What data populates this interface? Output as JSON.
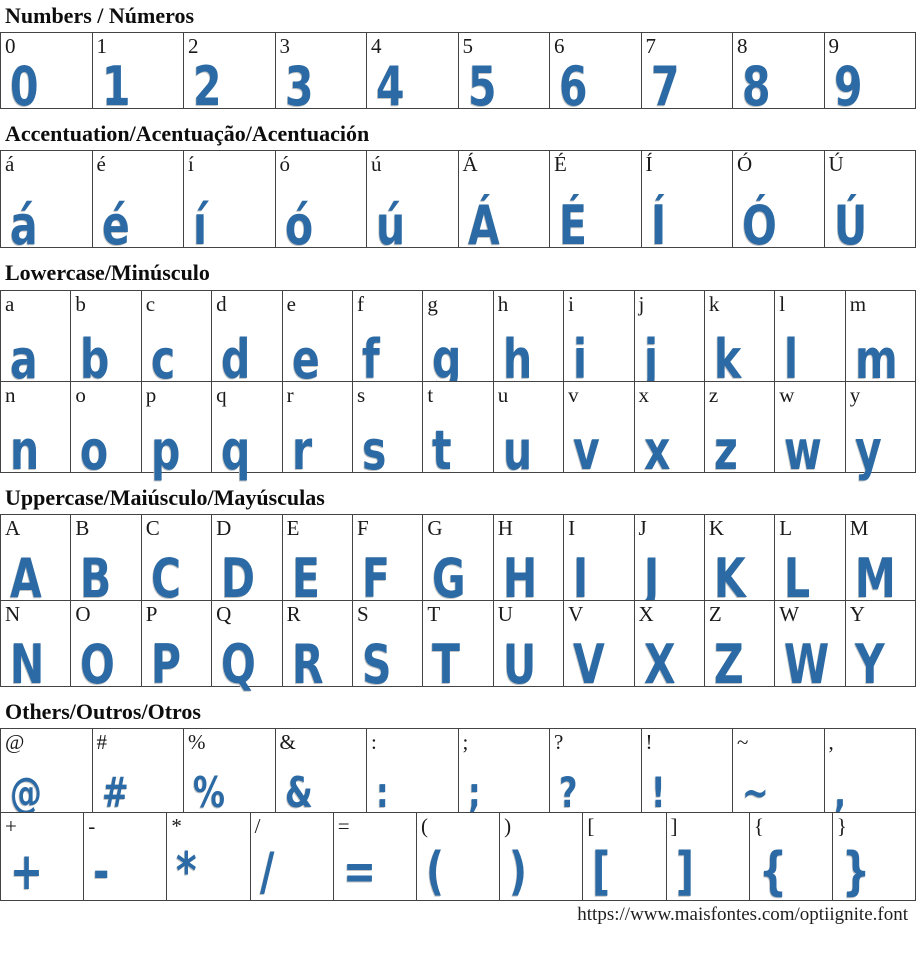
{
  "colors": {
    "glyph_blue": "#2b6aa4",
    "reference_black": "#1a1a1a",
    "grid_border": "#434343"
  },
  "sections": [
    {
      "id": "numbers",
      "title": "Numbers / Números",
      "rows": [
        [
          "0",
          "1",
          "2",
          "3",
          "4",
          "5",
          "6",
          "7",
          "8",
          "9"
        ]
      ]
    },
    {
      "id": "accentuation",
      "title": "Accentuation/Acentuação/Acentuación",
      "rows": [
        [
          "á",
          "é",
          "í",
          "ó",
          "ú",
          "Á",
          "É",
          "Í",
          "Ó",
          "Ú"
        ]
      ]
    },
    {
      "id": "lowercase",
      "title": "Lowercase/Minúsculo",
      "rows": [
        [
          "a",
          "b",
          "c",
          "d",
          "e",
          "f",
          "g",
          "h",
          "i",
          "j",
          "k",
          "l",
          "m"
        ],
        [
          "n",
          "o",
          "p",
          "q",
          "r",
          "s",
          "t",
          "u",
          "v",
          "x",
          "z",
          "w",
          "y"
        ]
      ]
    },
    {
      "id": "uppercase",
      "title": "Uppercase/Maiúsculo/Mayúsculas",
      "rows": [
        [
          "A",
          "B",
          "C",
          "D",
          "E",
          "F",
          "G",
          "H",
          "I",
          "J",
          "K",
          "L",
          "M"
        ],
        [
          "N",
          "O",
          "P",
          "Q",
          "R",
          "S",
          "T",
          "U",
          "V",
          "X",
          "Z",
          "W",
          "Y"
        ]
      ]
    },
    {
      "id": "others",
      "title": "Others/Outros/Otros",
      "rows": [
        [
          "@",
          "#",
          "%",
          "&",
          ":",
          ";",
          "?",
          "!",
          "~",
          ","
        ],
        [
          "+",
          "-",
          "*",
          "/",
          "=",
          "(",
          ")",
          "[",
          "]",
          "{",
          "}"
        ]
      ]
    }
  ],
  "footer": {
    "url": "https://www.maisfontes.com/optiignite.font"
  }
}
